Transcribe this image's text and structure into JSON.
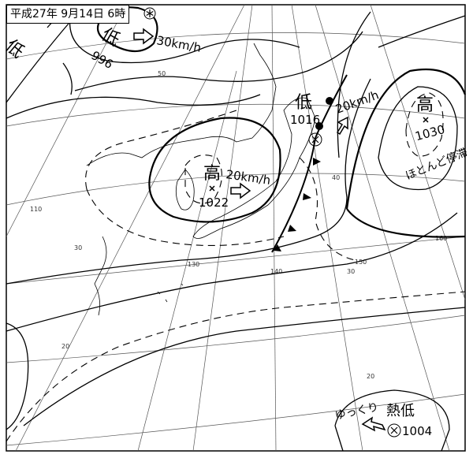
{
  "title": "平成27年 9月14日 6時",
  "title_symbol": "typhoon-symbol",
  "pressure_systems": [
    {
      "type": "低",
      "value": "996",
      "motion": "30km/h",
      "motion_direction": "east"
    },
    {
      "type": "低",
      "value": ""
    },
    {
      "type": "高",
      "value": "1022",
      "motion": "20km/h",
      "motion_direction": "east"
    },
    {
      "type": "低",
      "value": "1016",
      "motion": "20km/h",
      "motion_direction": "north-northeast"
    },
    {
      "type": "高",
      "value": "1030",
      "motion": "ほとんど停滞"
    },
    {
      "type": "熱低",
      "value": "1004",
      "motion": "ゆっくり",
      "motion_direction": "west-northwest"
    }
  ],
  "latitude_labels": [
    "50",
    "40",
    "30",
    "30",
    "20",
    "20"
  ],
  "longitude_labels": [
    "110",
    "130",
    "140",
    "150",
    "160"
  ],
  "fronts": [
    "cold-front",
    "warm-front"
  ]
}
